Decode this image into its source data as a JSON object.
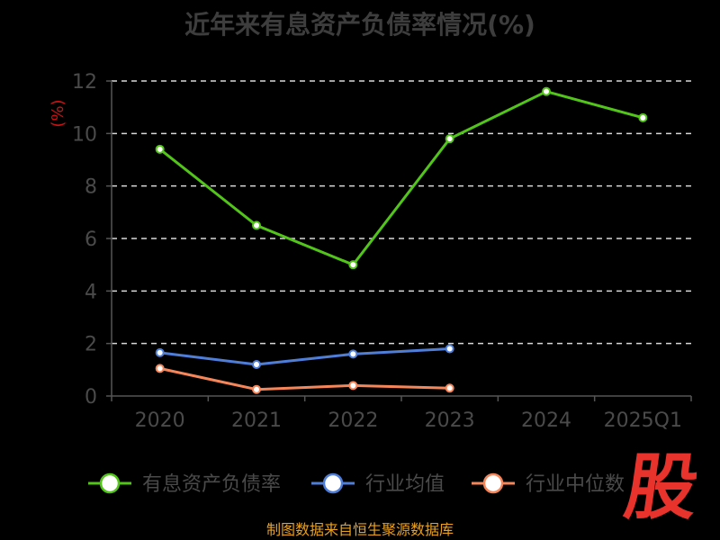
{
  "title": "近年来有息资产负债率情况(%)",
  "footer": "制图数据来自恒生聚源数据库",
  "logo_text": "股",
  "colors": {
    "background": "#000000",
    "grid": "#d9d9d9",
    "axis": "#555555",
    "ylabel": "#cc1111",
    "company": "#52c41a",
    "industry_avg": "#4f7ed8",
    "industry_median": "#f5865a"
  },
  "chart_data": {
    "type": "line",
    "title": "近年来有息资产负债率情况(%)",
    "xlabel": "",
    "ylabel": "(%)",
    "categories": [
      "2020",
      "2021",
      "2022",
      "2023",
      "2024",
      "2025Q1"
    ],
    "ylim": [
      0,
      12
    ],
    "yticks": [
      0,
      2,
      4,
      6,
      8,
      10,
      12
    ],
    "grid": true,
    "legend_position": "bottom",
    "series": [
      {
        "name": "有息资产负债率",
        "color": "#52c41a",
        "values": [
          9.4,
          6.5,
          5.0,
          9.8,
          11.6,
          10.6
        ]
      },
      {
        "name": "行业均值",
        "color": "#4f7ed8",
        "values": [
          1.65,
          1.2,
          1.6,
          1.8,
          null,
          null
        ]
      },
      {
        "name": "行业中位数",
        "color": "#f5865a",
        "values": [
          1.05,
          0.25,
          0.4,
          0.3,
          null,
          null
        ]
      }
    ]
  }
}
